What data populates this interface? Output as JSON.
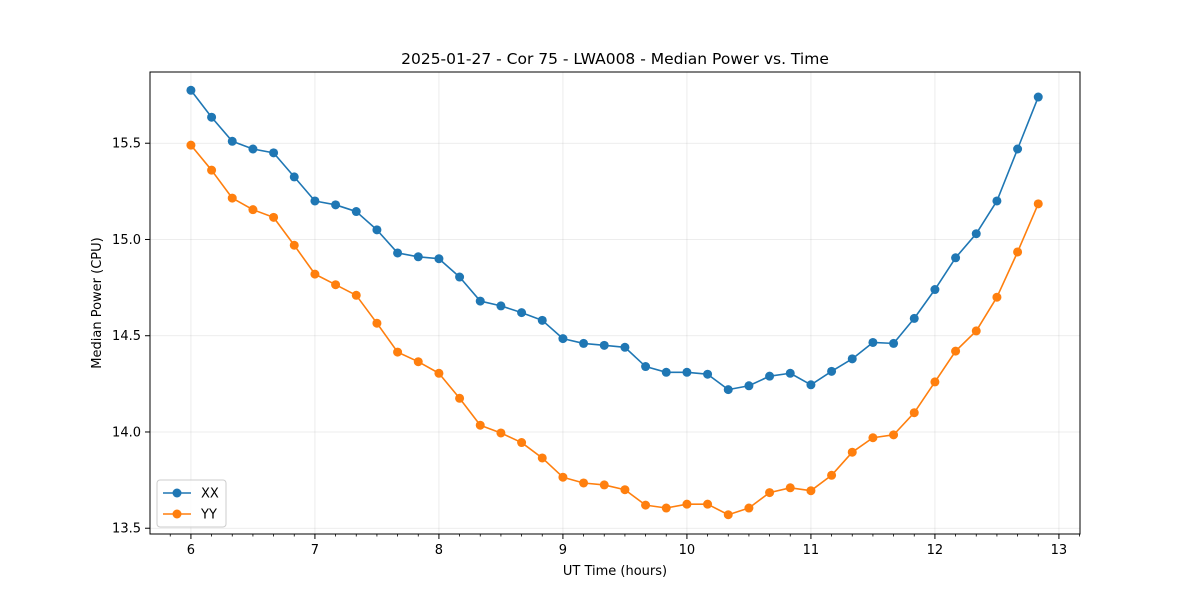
{
  "chart_data": {
    "type": "line",
    "title": "2025-01-27 - Cor 75 - LWA008 - Median Power vs. Time",
    "xlabel": "UT Time (hours)",
    "ylabel": "Median Power (CPU)",
    "xlim": [
      5.67,
      13.17
    ],
    "ylim": [
      13.47,
      15.87
    ],
    "xticks": [
      6,
      7,
      8,
      9,
      10,
      11,
      12,
      13
    ],
    "yticks": [
      13.5,
      14.0,
      14.5,
      15.0,
      15.5
    ],
    "xtick_labels": [
      "6",
      "7",
      "8",
      "9",
      "10",
      "11",
      "12",
      "13"
    ],
    "ytick_labels": [
      "13.5",
      "14.0",
      "14.5",
      "15.0",
      "15.5"
    ],
    "grid": true,
    "legend_position": "lower-left",
    "x": [
      6.0,
      6.1667,
      6.3333,
      6.5,
      6.6667,
      6.8333,
      7.0,
      7.1667,
      7.3333,
      7.5,
      7.6667,
      7.8333,
      8.0,
      8.1667,
      8.3333,
      8.5,
      8.6667,
      8.8333,
      9.0,
      9.1667,
      9.3333,
      9.5,
      9.6667,
      9.8333,
      10.0,
      10.1667,
      10.3333,
      10.5,
      10.6667,
      10.8333,
      11.0,
      11.1667,
      11.3333,
      11.5,
      11.6667,
      11.8333,
      12.0,
      12.1667,
      12.3333,
      12.5,
      12.6667,
      12.8333
    ],
    "series": [
      {
        "name": "XX",
        "color": "#1f77b4",
        "values": [
          15.775,
          15.635,
          15.51,
          15.47,
          15.45,
          15.325,
          15.2,
          15.18,
          15.145,
          15.05,
          14.93,
          14.91,
          14.9,
          14.805,
          14.68,
          14.655,
          14.62,
          14.58,
          14.485,
          14.46,
          14.45,
          14.44,
          14.34,
          14.31,
          14.31,
          14.3,
          14.22,
          14.24,
          14.29,
          14.305,
          14.245,
          14.315,
          14.38,
          14.465,
          14.46,
          14.59,
          14.74,
          14.905,
          15.03,
          15.2,
          15.47,
          15.74
        ]
      },
      {
        "name": "YY",
        "color": "#ff7f0e",
        "values": [
          15.49,
          15.36,
          15.215,
          15.155,
          15.115,
          14.97,
          14.82,
          14.765,
          14.71,
          14.565,
          14.415,
          14.365,
          14.305,
          14.175,
          14.035,
          13.995,
          13.945,
          13.865,
          13.765,
          13.735,
          13.725,
          13.7,
          13.62,
          13.605,
          13.625,
          13.625,
          13.57,
          13.605,
          13.685,
          13.71,
          13.695,
          13.775,
          13.895,
          13.97,
          13.985,
          14.1,
          14.26,
          14.42,
          14.525,
          14.7,
          14.935,
          15.185
        ]
      }
    ]
  }
}
